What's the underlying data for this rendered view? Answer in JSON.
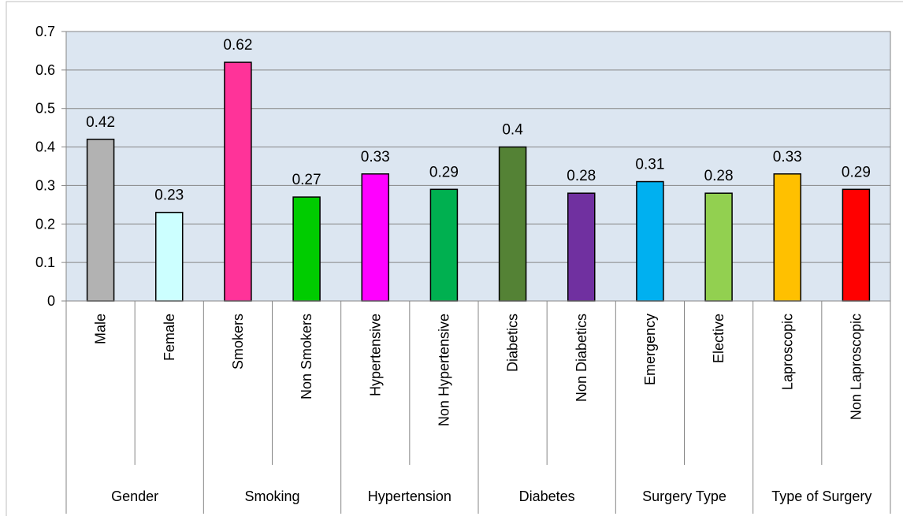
{
  "chart_data": {
    "type": "bar",
    "title": "",
    "xlabel": "",
    "ylabel": "",
    "ylim": [
      0,
      0.7
    ],
    "yticks": [
      0,
      0.1,
      0.2,
      0.3,
      0.4,
      0.5,
      0.6,
      0.7
    ],
    "grid": true,
    "legend": "none",
    "plot_background": "#dce6f1",
    "categories": [
      "Male",
      "Female",
      "Smokers",
      "Non Smokers",
      "Hypertensive",
      "Non Hypertensive",
      "Diabetics",
      "Non Diabetics",
      "Emergency",
      "Elective",
      "Laproscopic",
      "Non Laproscopic"
    ],
    "values": [
      0.42,
      0.23,
      0.62,
      0.27,
      0.33,
      0.29,
      0.4,
      0.28,
      0.31,
      0.28,
      0.33,
      0.29
    ],
    "data_labels": [
      "0.42",
      "0.23",
      "0.62",
      "0.27",
      "0.33",
      "0.29",
      "0.4",
      "0.28",
      "0.31",
      "0.28",
      "0.33",
      "0.29"
    ],
    "colors": [
      "#b2b2b2",
      "#ccffff",
      "#ff3399",
      "#00cc00",
      "#ff00ff",
      "#00b050",
      "#548235",
      "#7030a0",
      "#00b0f0",
      "#92d050",
      "#ffc000",
      "#ff0000"
    ],
    "groups": [
      {
        "name": "Gender",
        "span": 2
      },
      {
        "name": "Smoking",
        "span": 2
      },
      {
        "name": "Hypertension",
        "span": 2
      },
      {
        "name": "Diabetes",
        "span": 2
      },
      {
        "name": "Surgery Type",
        "span": 2
      },
      {
        "name": "Type of Surgery",
        "span": 2
      }
    ]
  }
}
